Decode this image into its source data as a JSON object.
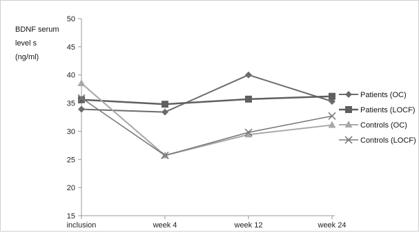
{
  "chart_data": {
    "type": "line",
    "ylabel_lines": [
      "BDNF serum",
      "level s",
      "(ng/ml)"
    ],
    "categories": [
      "inclusion",
      "week 4",
      "week 12",
      "week 24"
    ],
    "yticks": [
      "15",
      "20",
      "25",
      "30",
      "35",
      "40",
      "45",
      "50"
    ],
    "ylim": [
      15,
      50
    ],
    "grid": false,
    "legend_position": "right",
    "series": [
      {
        "name": "Patients (OC)",
        "values": [
          33.9,
          33.4,
          40.0,
          35.3
        ],
        "color": "#6b6b6b",
        "marker": "diamond",
        "stroke_width": 2
      },
      {
        "name": "Patients (LOCF)",
        "values": [
          35.6,
          34.8,
          35.7,
          36.2
        ],
        "color": "#5f5f5f",
        "marker": "square",
        "stroke_width": 2.5
      },
      {
        "name": "Controls (OC)",
        "values": [
          38.5,
          25.7,
          29.4,
          31.1
        ],
        "color": "#a8a8a8",
        "marker": "triangle",
        "stroke_width": 2
      },
      {
        "name": "Controls (LOCF)",
        "values": [
          35.9,
          25.7,
          29.8,
          32.7
        ],
        "color": "#7a7a7a",
        "marker": "x",
        "stroke_width": 1.6
      }
    ]
  }
}
